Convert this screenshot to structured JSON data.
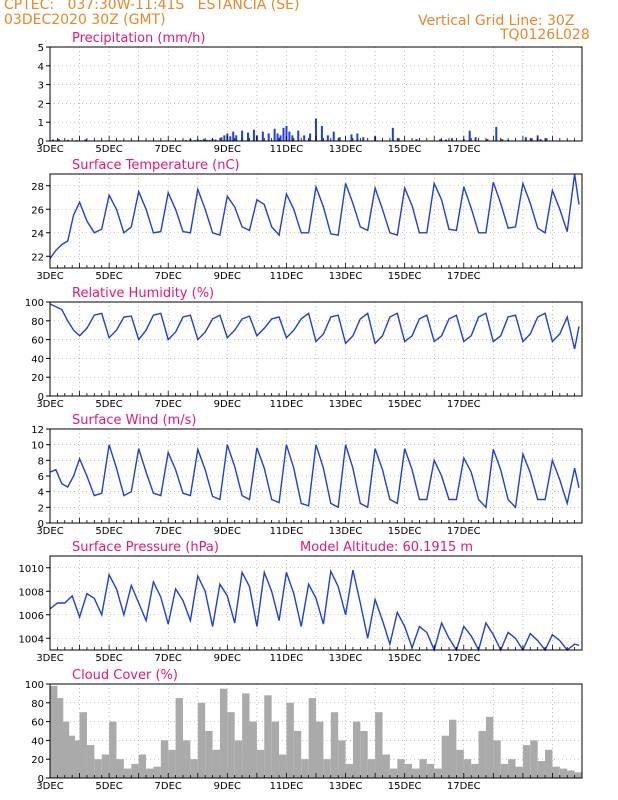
{
  "header": {
    "line1": "CPTEC:   037:30W-11:41S   ESTANCIA (SE)",
    "line2": "03DEC2020 30Z (GMT)",
    "grid_note": "Vertical Grid Line: 30Z",
    "code": "TQ0126L028"
  },
  "colors": {
    "accent": "#e8872a",
    "title": "#e8157d",
    "series": "#1f3fd8",
    "cloud": "#aaaaaa",
    "grid": "#999999"
  },
  "chart_data": [
    {
      "type": "bar",
      "title": "Precipitation (mm/h)",
      "x_ticks": [
        "3DEC",
        "5DEC",
        "7DEC",
        "9DEC",
        "11DEC",
        "13DEC",
        "15DEC",
        "17DEC"
      ],
      "ylim": [
        0,
        5
      ],
      "y_ticks": [
        0,
        1,
        2,
        3,
        4,
        5
      ],
      "grid": true,
      "x_days": [
        0.1,
        0.3,
        0.6,
        0.9,
        1.2,
        4.6,
        4.75,
        4.9,
        5.0,
        5.1,
        5.2,
        5.3,
        5.4,
        5.5,
        5.6,
        5.8,
        5.9,
        6.0,
        6.1,
        6.2,
        6.3,
        6.5,
        6.7,
        6.9,
        7.0,
        7.2,
        7.4,
        7.6,
        7.7,
        7.8,
        7.9,
        8.0,
        8.1,
        8.2,
        8.4,
        8.6,
        8.8,
        9.0,
        9.2,
        9.4,
        9.6,
        9.8,
        10.2,
        10.4,
        10.6,
        11.0,
        11.6,
        11.8,
        12.4,
        13.2,
        13.4,
        13.6,
        14.0,
        14.2,
        14.4,
        14.8,
        15.1,
        15.3,
        15.5,
        16.1,
        16.3,
        16.5,
        16.6,
        16.8
      ],
      "values": [
        0.08,
        0.1,
        0.06,
        0.05,
        0.08,
        0.05,
        0.1,
        0.05,
        0.08,
        0.05,
        0.1,
        0.06,
        0.05,
        0.1,
        0.08,
        0.2,
        0.3,
        0.4,
        0.25,
        0.5,
        0.3,
        0.55,
        0.45,
        0.6,
        0.3,
        0.5,
        0.4,
        0.65,
        0.4,
        0.3,
        0.7,
        0.8,
        0.5,
        0.3,
        0.55,
        0.3,
        0.4,
        1.2,
        0.8,
        0.3,
        0.5,
        0.2,
        0.35,
        0.4,
        0.2,
        0.25,
        0.7,
        0.15,
        0.1,
        0.1,
        0.08,
        0.15,
        0.1,
        0.55,
        0.2,
        0.1,
        0.75,
        0.1,
        0.05,
        0.2,
        0.15,
        0.3,
        0.1,
        0.15
      ]
    },
    {
      "type": "line",
      "title": "Surface Temperature (nC)",
      "x_ticks": [
        "3DEC",
        "5DEC",
        "7DEC",
        "9DEC",
        "11DEC",
        "13DEC",
        "15DEC",
        "17DEC"
      ],
      "ylim": [
        21,
        29
      ],
      "y_ticks": [
        22,
        24,
        26,
        28
      ],
      "grid": true,
      "x_days": [
        0.0,
        0.2,
        0.4,
        0.6,
        0.8,
        1.0,
        1.25,
        1.5,
        1.75,
        2.0,
        2.25,
        2.5,
        2.75,
        3.0,
        3.25,
        3.5,
        3.75,
        4.0,
        4.25,
        4.5,
        4.75,
        5.0,
        5.25,
        5.5,
        5.75,
        6.0,
        6.25,
        6.5,
        6.75,
        7.0,
        7.25,
        7.5,
        7.75,
        8.0,
        8.25,
        8.5,
        8.75,
        9.0,
        9.25,
        9.5,
        9.75,
        10.0,
        10.25,
        10.5,
        10.75,
        11.0,
        11.25,
        11.5,
        11.75,
        12.0,
        12.25,
        12.5,
        12.75,
        13.0,
        13.25,
        13.5,
        13.75,
        14.0,
        14.25,
        14.5,
        14.75,
        15.0,
        15.25,
        15.5,
        15.75,
        16.0,
        16.25,
        16.5,
        16.75,
        17.0,
        17.25,
        17.5,
        17.75,
        17.9
      ],
      "values": [
        21.8,
        22.5,
        23.0,
        23.3,
        25.5,
        26.6,
        25.0,
        24.0,
        24.3,
        27.2,
        26.0,
        24.0,
        24.5,
        27.5,
        26.0,
        24.0,
        24.1,
        27.4,
        26.0,
        24.1,
        24.0,
        27.7,
        26.0,
        24.0,
        23.8,
        27.1,
        26.2,
        24.5,
        24.2,
        26.8,
        26.4,
        24.5,
        23.8,
        27.3,
        26.0,
        24.0,
        24.0,
        27.9,
        26.2,
        23.9,
        23.8,
        28.2,
        26.5,
        24.5,
        24.2,
        27.8,
        26.0,
        24.0,
        23.8,
        27.8,
        26.3,
        24.0,
        24.0,
        28.2,
        26.8,
        24.3,
        24.2,
        27.9,
        26.1,
        24.0,
        24.0,
        28.3,
        26.5,
        24.4,
        24.5,
        28.2,
        26.5,
        24.4,
        24.0,
        27.6,
        26.0,
        24.1,
        29.0,
        26.4
      ]
    },
    {
      "type": "line",
      "title": "Relative Humidity (%)",
      "x_ticks": [
        "3DEC",
        "5DEC",
        "7DEC",
        "9DEC",
        "11DEC",
        "13DEC",
        "15DEC",
        "17DEC"
      ],
      "ylim": [
        0,
        100
      ],
      "y_ticks": [
        0,
        20,
        40,
        60,
        80,
        100
      ],
      "grid": true,
      "x_days": [
        0.0,
        0.2,
        0.4,
        0.6,
        0.8,
        1.0,
        1.25,
        1.5,
        1.75,
        2.0,
        2.25,
        2.5,
        2.75,
        3.0,
        3.25,
        3.5,
        3.75,
        4.0,
        4.25,
        4.5,
        4.75,
        5.0,
        5.25,
        5.5,
        5.75,
        6.0,
        6.25,
        6.5,
        6.75,
        7.0,
        7.25,
        7.5,
        7.75,
        8.0,
        8.25,
        8.5,
        8.75,
        9.0,
        9.25,
        9.5,
        9.75,
        10.0,
        10.25,
        10.5,
        10.75,
        11.0,
        11.25,
        11.5,
        11.75,
        12.0,
        12.25,
        12.5,
        12.75,
        13.0,
        13.25,
        13.5,
        13.75,
        14.0,
        14.25,
        14.5,
        14.75,
        15.0,
        15.25,
        15.5,
        15.75,
        16.0,
        16.25,
        16.5,
        16.75,
        17.0,
        17.25,
        17.5,
        17.75,
        17.9
      ],
      "values": [
        98,
        95,
        92,
        80,
        70,
        64,
        72,
        86,
        88,
        62,
        70,
        84,
        85,
        60,
        70,
        86,
        88,
        60,
        68,
        84,
        86,
        60,
        68,
        82,
        86,
        62,
        70,
        82,
        85,
        64,
        72,
        82,
        84,
        62,
        70,
        82,
        88,
        58,
        66,
        84,
        86,
        56,
        64,
        82,
        88,
        56,
        64,
        84,
        88,
        58,
        64,
        82,
        86,
        58,
        64,
        82,
        86,
        58,
        64,
        84,
        88,
        58,
        64,
        84,
        86,
        58,
        66,
        84,
        88,
        58,
        66,
        84,
        50,
        74
      ]
    },
    {
      "type": "line",
      "title": "Surface Wind (m/s)",
      "x_ticks": [
        "3DEC",
        "5DEC",
        "7DEC",
        "9DEC",
        "11DEC",
        "13DEC",
        "15DEC",
        "17DEC"
      ],
      "ylim": [
        0,
        12
      ],
      "y_ticks": [
        0,
        2,
        4,
        6,
        8,
        10,
        12
      ],
      "grid": true,
      "x_days": [
        0.0,
        0.2,
        0.4,
        0.6,
        0.8,
        1.0,
        1.25,
        1.5,
        1.75,
        2.0,
        2.25,
        2.5,
        2.75,
        3.0,
        3.25,
        3.5,
        3.75,
        4.0,
        4.25,
        4.5,
        4.75,
        5.0,
        5.25,
        5.5,
        5.75,
        6.0,
        6.25,
        6.5,
        6.75,
        7.0,
        7.25,
        7.5,
        7.75,
        8.0,
        8.25,
        8.5,
        8.75,
        9.0,
        9.25,
        9.5,
        9.75,
        10.0,
        10.25,
        10.5,
        10.75,
        11.0,
        11.25,
        11.5,
        11.75,
        12.0,
        12.25,
        12.5,
        12.75,
        13.0,
        13.25,
        13.5,
        13.75,
        14.0,
        14.25,
        14.5,
        14.75,
        15.0,
        15.25,
        15.5,
        15.75,
        16.0,
        16.25,
        16.5,
        16.75,
        17.0,
        17.25,
        17.5,
        17.75,
        17.9
      ],
      "values": [
        6.5,
        6.8,
        5.0,
        4.6,
        6.0,
        8.2,
        6.0,
        3.5,
        3.8,
        10.0,
        7.0,
        3.5,
        4.0,
        9.5,
        6.5,
        3.8,
        3.5,
        9.0,
        6.8,
        3.8,
        3.5,
        9.4,
        6.8,
        3.4,
        3.0,
        10.0,
        7.2,
        3.5,
        3.0,
        9.6,
        7.0,
        3.0,
        2.6,
        10.0,
        7.0,
        2.5,
        2.2,
        10.0,
        7.0,
        2.5,
        2.0,
        10.0,
        7.0,
        2.5,
        2.0,
        9.5,
        6.8,
        3.0,
        2.5,
        9.5,
        6.8,
        3.0,
        3.0,
        8.0,
        6.0,
        3.0,
        3.0,
        8.3,
        6.5,
        3.0,
        2.0,
        9.4,
        6.8,
        3.0,
        2.0,
        8.8,
        6.4,
        3.0,
        3.0,
        8.0,
        5.5,
        2.5,
        7.0,
        4.5
      ]
    },
    {
      "type": "line",
      "title": "Surface Pressure (hPa)",
      "annotation": "Model Altitude: 60.1915 m",
      "x_ticks": [
        "3DEC",
        "5DEC",
        "7DEC",
        "9DEC",
        "11DEC",
        "13DEC",
        "15DEC",
        "17DEC"
      ],
      "ylim": [
        1003,
        1011
      ],
      "y_ticks": [
        1004,
        1006,
        1008,
        1010
      ],
      "grid": true,
      "x_days": [
        0.0,
        0.25,
        0.5,
        0.75,
        1.0,
        1.25,
        1.5,
        1.75,
        2.0,
        2.25,
        2.5,
        2.75,
        3.0,
        3.25,
        3.5,
        3.75,
        4.0,
        4.25,
        4.5,
        4.75,
        5.0,
        5.25,
        5.5,
        5.75,
        6.0,
        6.25,
        6.5,
        6.75,
        7.0,
        7.25,
        7.5,
        7.75,
        8.0,
        8.25,
        8.5,
        8.75,
        9.0,
        9.25,
        9.5,
        9.75,
        10.0,
        10.25,
        10.5,
        10.75,
        11.0,
        11.25,
        11.5,
        11.75,
        12.0,
        12.25,
        12.5,
        12.75,
        13.0,
        13.25,
        13.5,
        13.75,
        14.0,
        14.25,
        14.5,
        14.75,
        15.0,
        15.25,
        15.5,
        15.75,
        16.0,
        16.25,
        16.5,
        16.75,
        17.0,
        17.25,
        17.5,
        17.75,
        17.9
      ],
      "values": [
        1006.5,
        1007.0,
        1007.0,
        1007.6,
        1005.8,
        1007.8,
        1007.4,
        1006.0,
        1009.4,
        1008.2,
        1006.0,
        1008.5,
        1007.0,
        1005.5,
        1008.8,
        1007.5,
        1005.2,
        1008.2,
        1007.2,
        1005.5,
        1009.3,
        1008.0,
        1005.0,
        1008.6,
        1007.6,
        1005.3,
        1009.6,
        1008.4,
        1005.0,
        1009.6,
        1008.0,
        1005.5,
        1009.6,
        1007.8,
        1005.0,
        1008.6,
        1007.4,
        1005.2,
        1009.7,
        1008.4,
        1006.0,
        1009.8,
        1007.0,
        1004.0,
        1007.3,
        1005.5,
        1003.5,
        1006.2,
        1005.0,
        1003.2,
        1005.0,
        1004.5,
        1003.0,
        1005.3,
        1004.0,
        1003.0,
        1005.0,
        1004.2,
        1003.0,
        1005.3,
        1004.3,
        1003.0,
        1004.5,
        1004.0,
        1003.0,
        1004.4,
        1003.8,
        1003.0,
        1004.3,
        1003.8,
        1003.0,
        1003.5,
        1003.4
      ]
    },
    {
      "type": "bar",
      "title": "Cloud Cover (%)",
      "x_ticks": [
        "3DEC",
        "5DEC",
        "7DEC",
        "9DEC",
        "11DEC",
        "13DEC",
        "15DEC",
        "17DEC"
      ],
      "ylim": [
        0,
        100
      ],
      "y_ticks": [
        0,
        20,
        40,
        60,
        80,
        100
      ],
      "grid": true,
      "x_days": [
        0.0,
        0.2,
        0.4,
        0.6,
        0.8,
        1.0,
        1.25,
        1.5,
        1.75,
        2.0,
        2.25,
        2.5,
        2.75,
        3.0,
        3.25,
        3.5,
        3.75,
        4.0,
        4.25,
        4.5,
        4.75,
        5.0,
        5.25,
        5.5,
        5.75,
        6.0,
        6.25,
        6.5,
        6.75,
        7.0,
        7.25,
        7.5,
        7.75,
        8.0,
        8.25,
        8.5,
        8.75,
        9.0,
        9.25,
        9.5,
        9.75,
        10.0,
        10.25,
        10.5,
        10.75,
        11.0,
        11.25,
        11.5,
        11.75,
        12.0,
        12.25,
        12.5,
        12.75,
        13.0,
        13.25,
        13.5,
        13.75,
        14.0,
        14.25,
        14.5,
        14.75,
        15.0,
        15.25,
        15.5,
        15.75,
        16.0,
        16.25,
        16.5,
        16.75,
        17.0,
        17.25,
        17.5,
        17.75
      ],
      "values": [
        98,
        85,
        60,
        45,
        40,
        70,
        35,
        20,
        25,
        60,
        20,
        10,
        15,
        25,
        10,
        12,
        40,
        30,
        85,
        40,
        20,
        80,
        50,
        30,
        95,
        70,
        40,
        90,
        60,
        30,
        88,
        60,
        25,
        80,
        50,
        20,
        85,
        60,
        20,
        70,
        40,
        15,
        60,
        50,
        20,
        70,
        25,
        10,
        20,
        15,
        10,
        20,
        15,
        10,
        45,
        62,
        30,
        20,
        15,
        50,
        65,
        40,
        15,
        20,
        12,
        35,
        40,
        18,
        30,
        12,
        10,
        8,
        6
      ]
    }
  ]
}
